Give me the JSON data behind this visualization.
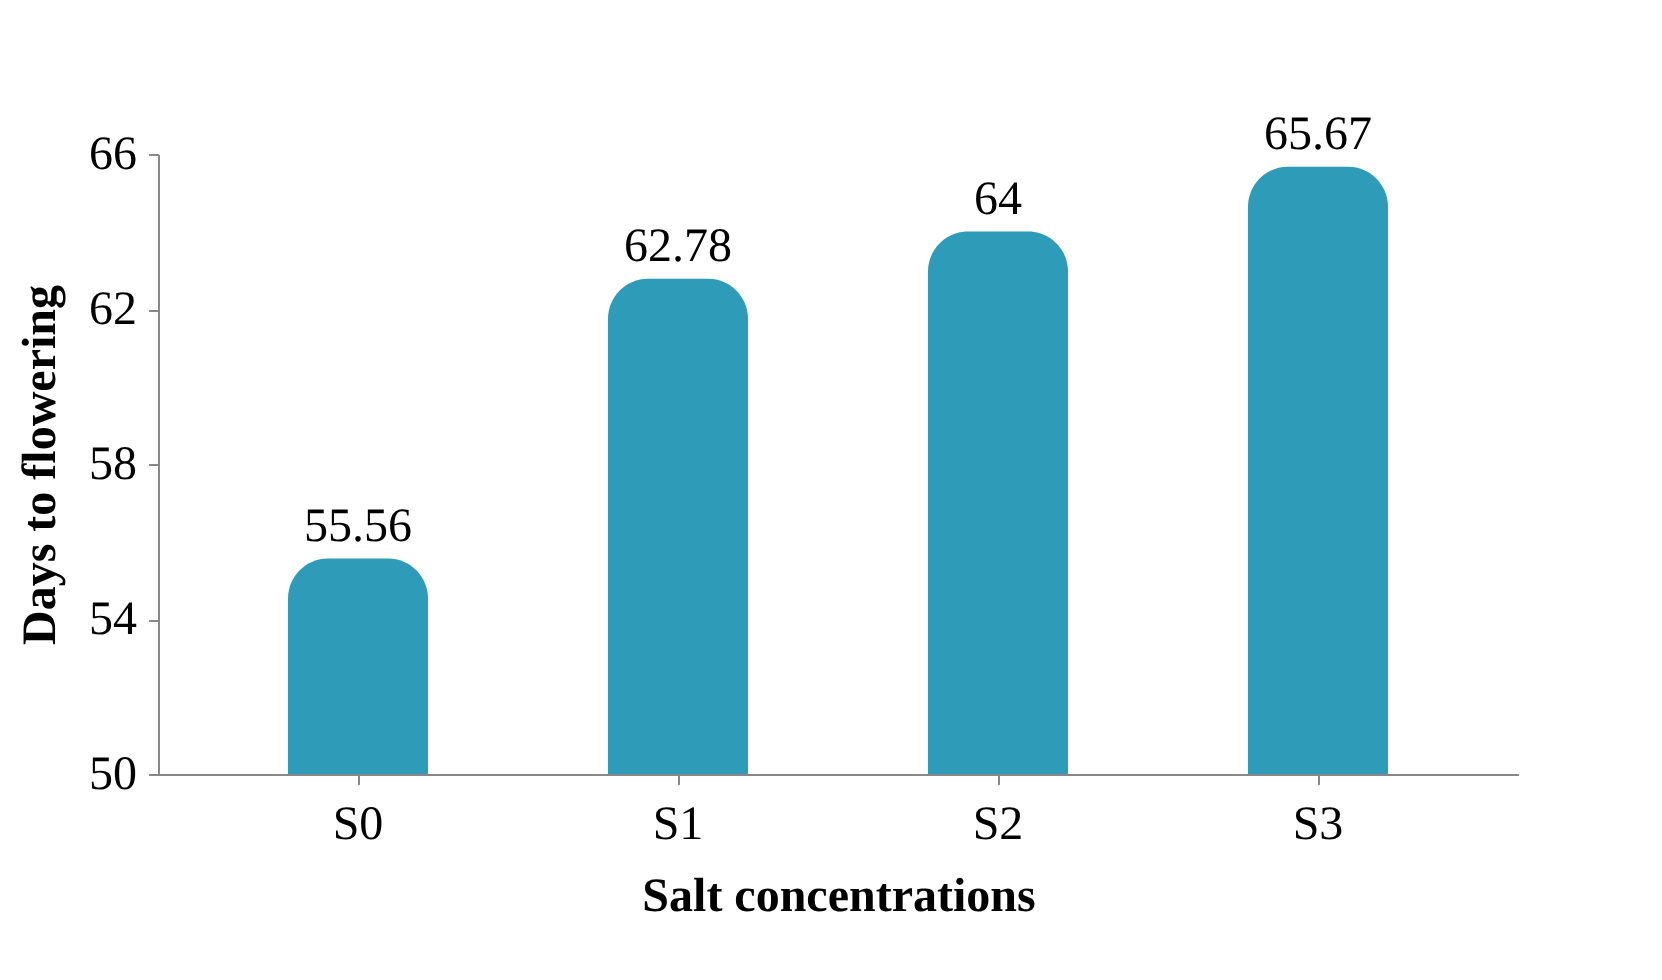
{
  "chart_data": {
    "type": "bar",
    "xlabel": "Salt concentrations",
    "ylabel": "Days to flowering",
    "categories": [
      "S0",
      "S1",
      "S2",
      "S3"
    ],
    "values": [
      55.56,
      62.78,
      64,
      65.67
    ],
    "color": "#2e9bb8",
    "ylim": [
      50,
      66
    ],
    "yticks": [
      50,
      54,
      58,
      62,
      66
    ],
    "grid": false,
    "data_labels": true
  }
}
